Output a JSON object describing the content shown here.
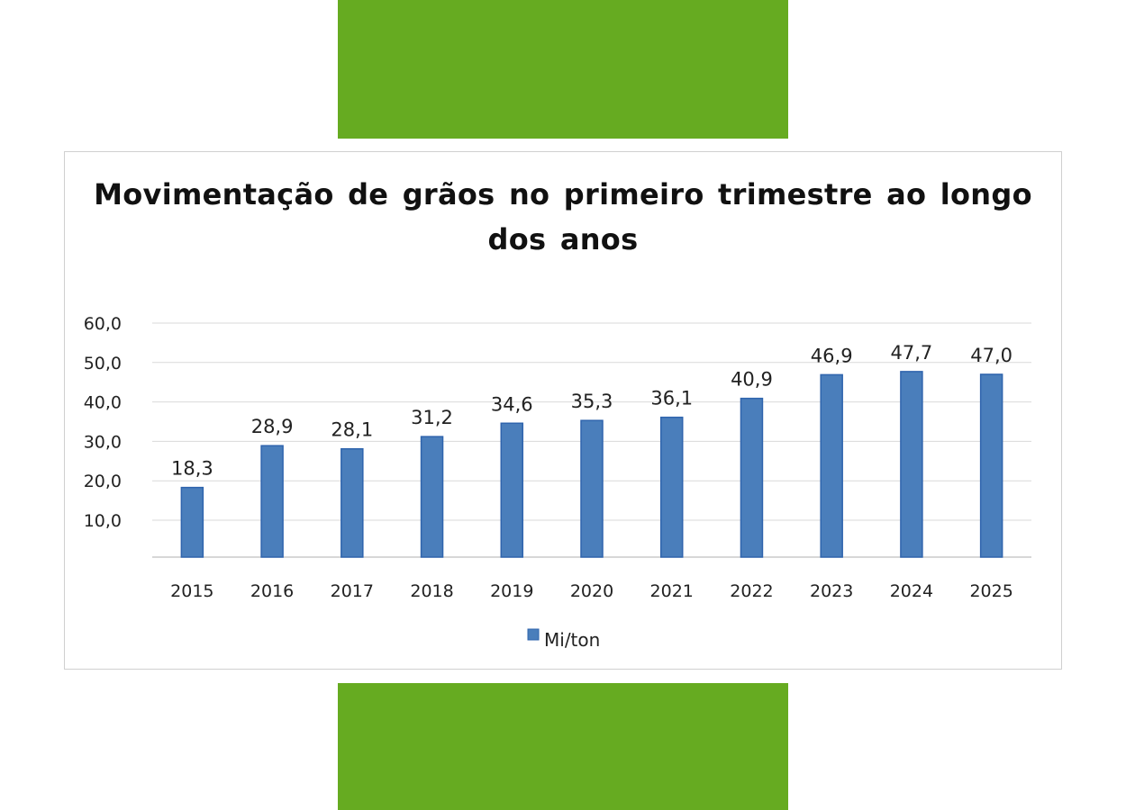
{
  "chart_data": {
    "type": "bar",
    "title": "Movimentação de grãos no primeiro trimestre ao longo dos anos",
    "xlabel": "",
    "ylabel": "",
    "categories": [
      "2015",
      "2016",
      "2017",
      "2018",
      "2019",
      "2020",
      "2021",
      "2022",
      "2023",
      "2024",
      "2025"
    ],
    "series": [
      {
        "name": "Mi/ton",
        "values": [
          18.3,
          28.9,
          28.1,
          31.2,
          34.6,
          35.3,
          36.1,
          40.9,
          46.9,
          47.7,
          47.0
        ],
        "value_labels": [
          "18,3",
          "28,9",
          "28,1",
          "31,2",
          "34,6",
          "35,3",
          "36,1",
          "40,9",
          "46,9",
          "47,7",
          "47,0"
        ],
        "color": "#4a7ebb"
      }
    ],
    "ylim": [
      0,
      60
    ],
    "yticks": [
      10,
      20,
      30,
      40,
      50,
      60
    ],
    "ytick_labels": [
      "10,0",
      "20,0",
      "30,0",
      "40,0",
      "50,0",
      "60,0"
    ],
    "grid": true,
    "legend": "bottom"
  },
  "colors": {
    "decor_green": "#66ab21",
    "bar": "#4a7ebb",
    "bar_edge": "#2f64ad",
    "grid": "#d9d9d9",
    "frame_border": "#d0d0d0"
  }
}
